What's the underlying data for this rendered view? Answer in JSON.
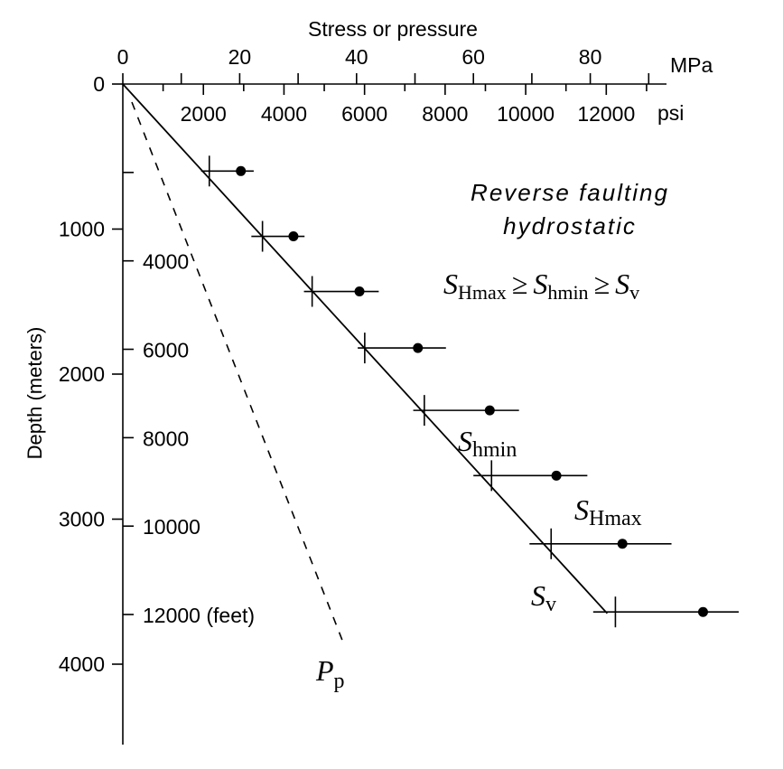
{
  "chart_data": {
    "type": "line",
    "top_axis_title": "Stress or pressure",
    "mpa_axis": {
      "unit": "MPa",
      "range": [
        0,
        90
      ],
      "ticks": [
        0,
        10,
        20,
        30,
        40,
        50,
        60,
        70,
        80,
        90
      ],
      "labels": [
        "0",
        "20",
        "40",
        "60",
        "80"
      ]
    },
    "psi_axis": {
      "unit": "psi",
      "range": [
        0,
        13000
      ],
      "labels": [
        "2000",
        "4000",
        "6000",
        "8000",
        "10000",
        "12000"
      ]
    },
    "depth_axis": {
      "title": "Depth (meters)",
      "range": [
        0,
        4600
      ],
      "labels": [
        "0",
        "1000",
        "2000",
        "3000",
        "4000"
      ]
    },
    "feet_axis": {
      "labels": [
        "4000",
        "6000",
        "8000",
        "10000",
        "12000 (feet)"
      ]
    },
    "regime": {
      "line1": "Reverse faulting",
      "line2": "hydrostatic"
    },
    "relation": {
      "s1": "S",
      "s1_sub": "Hmax",
      "op1": "≥",
      "s2": "S",
      "s2_sub": "hmin",
      "op2": "≥",
      "s3": "S",
      "s3_sub": "v"
    },
    "series": [
      {
        "label": "S",
        "label_sub": "v",
        "style": "solid",
        "x": [
          0,
          82.9
        ],
        "depth": [
          0,
          3650
        ]
      },
      {
        "label": "P",
        "label_sub": "p",
        "style": "dashed",
        "x": [
          0,
          37.8
        ],
        "depth": [
          0,
          3860
        ]
      },
      {
        "label": "S",
        "label_sub": "hmin",
        "marker": "tick",
        "x": [
          14.8,
          23.9,
          32.4,
          41.4,
          51.6,
          63.1,
          73.3,
          84.3
        ],
        "depth": [
          600,
          1050,
          1430,
          1820,
          2250,
          2700,
          3170,
          3640
        ],
        "error_low": [
          13.4,
          22.0,
          31.0,
          40.2,
          49.7,
          60.0,
          69.6,
          80.5
        ],
        "error_high": [
          22.4,
          31.1,
          43.8,
          55.3,
          67.8,
          79.5,
          93.9,
          105.4
        ]
      },
      {
        "label": "S",
        "label_sub": "Hmax",
        "marker": "dot",
        "x": [
          20.2,
          29.2,
          40.5,
          50.5,
          62.8,
          74.2,
          85.5,
          99.3
        ],
        "depth": [
          600,
          1050,
          1430,
          1820,
          2250,
          2700,
          3170,
          3640
        ]
      }
    ]
  }
}
